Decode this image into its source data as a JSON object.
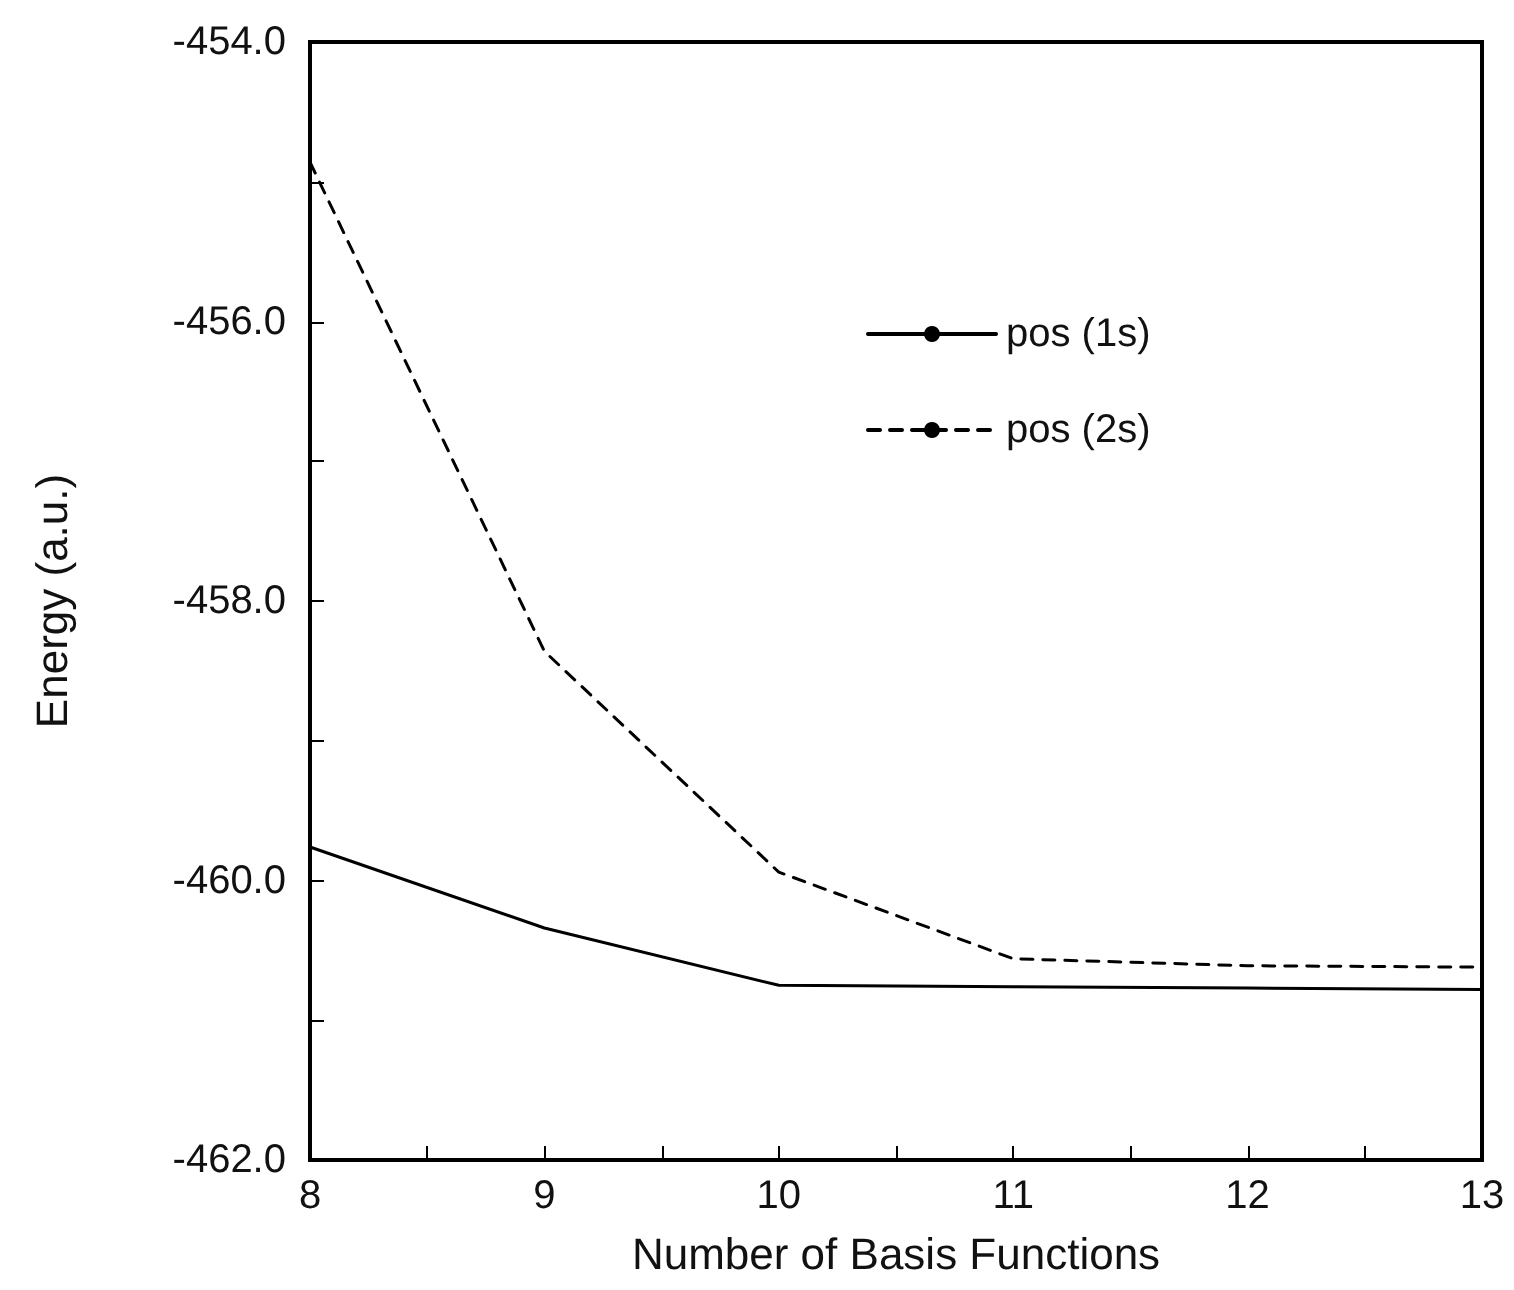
{
  "chart_data": {
    "type": "line",
    "xlabel": "Number of Basis Functions",
    "ylabel": "Energy (a.u.)",
    "x": [
      8,
      9,
      10,
      11,
      12,
      13
    ],
    "series": [
      {
        "name": "pos (1s)",
        "color": "#000000",
        "line_style": "solid",
        "values": [
          -459.76,
          -460.34,
          -460.75,
          -460.76,
          -460.77,
          -460.78
        ]
      },
      {
        "name": "pos (2s)",
        "color": "#000000",
        "line_style": "dashed",
        "values": [
          -454.86,
          -458.36,
          -459.94,
          -460.56,
          -460.61,
          -460.62
        ]
      }
    ],
    "xlim": [
      8,
      13
    ],
    "xticks": [
      8,
      {
        "value": 8.5,
        "label": null
      },
      9,
      {
        "value": 9.5,
        "label": null
      },
      10,
      {
        "value": 10.5,
        "label": null
      },
      11,
      {
        "value": 11.5,
        "label": null
      },
      12,
      {
        "value": 12.5,
        "label": null
      },
      13
    ],
    "ylim": [
      -462,
      -454
    ],
    "yticks": [
      {
        "value": -462,
        "label": "-462.0"
      },
      {
        "value": -461,
        "label": null
      },
      {
        "value": -460,
        "label": "-460.0"
      },
      {
        "value": -459,
        "label": null
      },
      {
        "value": -458,
        "label": "-458.0"
      },
      {
        "value": -457,
        "label": null
      },
      {
        "value": -456,
        "label": "-456.0"
      },
      {
        "value": -455,
        "label": null
      },
      {
        "value": -454,
        "label": "-454.0"
      }
    ],
    "grid": false,
    "legend": "top right",
    "marker": "none"
  }
}
